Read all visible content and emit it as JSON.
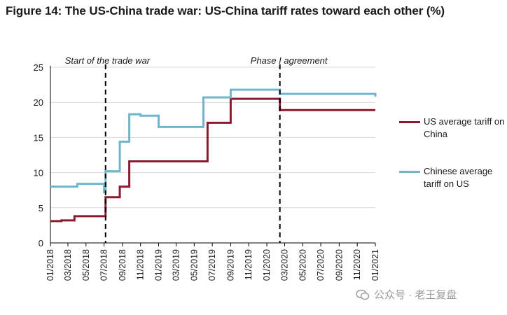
{
  "title": "Figure 14: The US-China trade war: US-China tariff rates toward each other (%)",
  "colors": {
    "us": "#8b1a2e",
    "china": "#6fb6c8",
    "axis": "#000000",
    "grid": "#d9d9d9"
  },
  "chart_data": {
    "type": "line",
    "step": true,
    "xlabel": "",
    "ylabel": "",
    "xlim": [
      "2018-01-01",
      "2021-01-01"
    ],
    "ylim": [
      0,
      25
    ],
    "yticks": [
      0,
      5,
      10,
      15,
      20,
      25
    ],
    "xticks": [
      "01/2018",
      "03/2018",
      "05/2018",
      "07/2018",
      "09/2018",
      "11/2018",
      "01/2019",
      "03/2019",
      "05/2019",
      "07/2019",
      "09/2019",
      "11/2019",
      "01/2020",
      "03/2020",
      "05/2020",
      "07/2020",
      "09/2020",
      "11/2020",
      "01/2021"
    ],
    "grid": "horizontal",
    "legend_position": "right",
    "annotations": [
      {
        "label": "Start of the trade war",
        "x": "2018-07-06"
      },
      {
        "label": "Phase I agreement",
        "x": "2020-02-14"
      }
    ],
    "series": [
      {
        "name": "US average tariff on China",
        "color_key": "us",
        "points": [
          [
            "2018-01-01",
            3.1
          ],
          [
            "2018-02-07",
            3.2
          ],
          [
            "2018-03-23",
            3.8
          ],
          [
            "2018-07-06",
            6.5
          ],
          [
            "2018-08-23",
            8.0
          ],
          [
            "2018-09-24",
            11.6
          ],
          [
            "2019-06-15",
            17.1
          ],
          [
            "2019-09-01",
            20.5
          ],
          [
            "2020-02-14",
            18.9
          ],
          [
            "2021-01-01",
            18.9
          ]
        ]
      },
      {
        "name": "Chinese average tariff on US",
        "color_key": "china",
        "points": [
          [
            "2018-01-01",
            8.0
          ],
          [
            "2018-04-02",
            8.4
          ],
          [
            "2018-07-01",
            7.2
          ],
          [
            "2018-07-06",
            10.2
          ],
          [
            "2018-08-23",
            14.4
          ],
          [
            "2018-09-24",
            18.3
          ],
          [
            "2018-11-01",
            18.1
          ],
          [
            "2019-01-01",
            16.5
          ],
          [
            "2019-06-01",
            20.7
          ],
          [
            "2019-09-01",
            21.8
          ],
          [
            "2020-02-14",
            21.2
          ],
          [
            "2020-12-26",
            21.2
          ],
          [
            "2021-01-01",
            20.8
          ]
        ]
      }
    ]
  },
  "watermark": {
    "text": "公众号 · 老王复盘"
  }
}
